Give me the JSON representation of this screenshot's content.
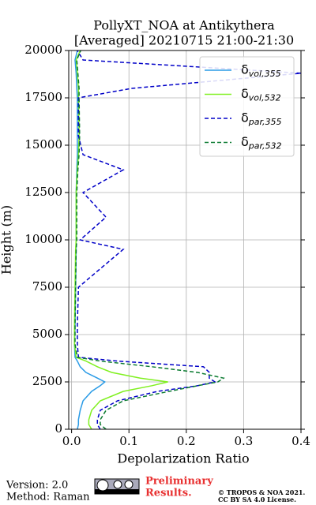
{
  "chart_data": {
    "type": "line",
    "title": [
      "PollyXT_NOA at Antikythera",
      "[Averaged] 20210715 21:00-21:30"
    ],
    "xlabel": "Depolarization Ratio",
    "ylabel": "Height (m)",
    "y": [
      0,
      250,
      500,
      1000,
      1500,
      2000,
      2300,
      2500,
      2700,
      3000,
      3300,
      3600,
      3800,
      4500,
      5500,
      7500,
      9500,
      10000,
      11200,
      12500,
      13700,
      14500,
      15500,
      17500,
      18000,
      18800,
      19500,
      20000
    ],
    "series": [
      {
        "name": "δvol,355",
        "color": "#2a9be6",
        "dashed": false,
        "values": [
          0.01,
          0.012,
          0.012,
          0.015,
          0.02,
          0.035,
          0.05,
          0.058,
          0.045,
          0.025,
          0.015,
          0.01,
          0.006,
          0.005,
          0.006,
          0.007,
          0.008,
          0.008,
          0.008,
          0.008,
          0.009,
          0.01,
          0.01,
          0.01,
          0.009,
          0.008,
          0.006,
          0.01
        ]
      },
      {
        "name": "δvol,532",
        "color": "#80f020",
        "dashed": false,
        "values": [
          0.035,
          0.03,
          0.03,
          0.035,
          0.05,
          0.09,
          0.14,
          0.168,
          0.12,
          0.07,
          0.045,
          0.025,
          0.008,
          0.005,
          0.005,
          0.006,
          0.007,
          0.008,
          0.008,
          0.008,
          0.01,
          0.012,
          0.013,
          0.012,
          0.012,
          0.01,
          0.008,
          0.015
        ]
      },
      {
        "name": "δpar,355",
        "color": "#0000c8",
        "dashed": true,
        "values": [
          0.05,
          0.045,
          0.045,
          0.05,
          0.08,
          0.15,
          0.22,
          0.25,
          0.24,
          0.24,
          0.23,
          0.08,
          0.012,
          0.01,
          0.01,
          0.012,
          0.09,
          0.015,
          0.06,
          0.02,
          0.09,
          0.02,
          0.012,
          0.012,
          0.105,
          0.4,
          0.02,
          0.01
        ]
      },
      {
        "name": "δpar,532",
        "color": "#0a7a30",
        "dashed": true,
        "values": [
          0.06,
          0.05,
          0.05,
          0.06,
          0.09,
          0.17,
          0.22,
          0.255,
          0.265,
          0.22,
          0.14,
          0.05,
          0.01,
          0.006,
          0.006,
          0.007,
          0.008,
          0.009,
          0.009,
          0.009,
          0.011,
          0.013,
          0.014,
          0.013,
          0.013,
          0.011,
          0.009,
          0.016
        ]
      }
    ],
    "xlim": [
      -0.005,
      0.4
    ],
    "xticks": [
      {
        "value": 0,
        "label": "0.0"
      },
      0.1,
      0.2,
      0.3,
      0.4
    ],
    "ylim": [
      0,
      20000
    ],
    "yticks": [
      0,
      2500,
      5000,
      7500,
      10000,
      12500,
      15000,
      17500,
      20000
    ],
    "grid": true,
    "legend": "upper right"
  },
  "footer": {
    "version": "Version: 2.0",
    "method": "Method: Raman",
    "preliminary": [
      "Preliminary",
      "Results."
    ],
    "copyright": [
      "© TROPOS & NOA 2021.",
      "CC BY SA 4.0 License."
    ]
  }
}
